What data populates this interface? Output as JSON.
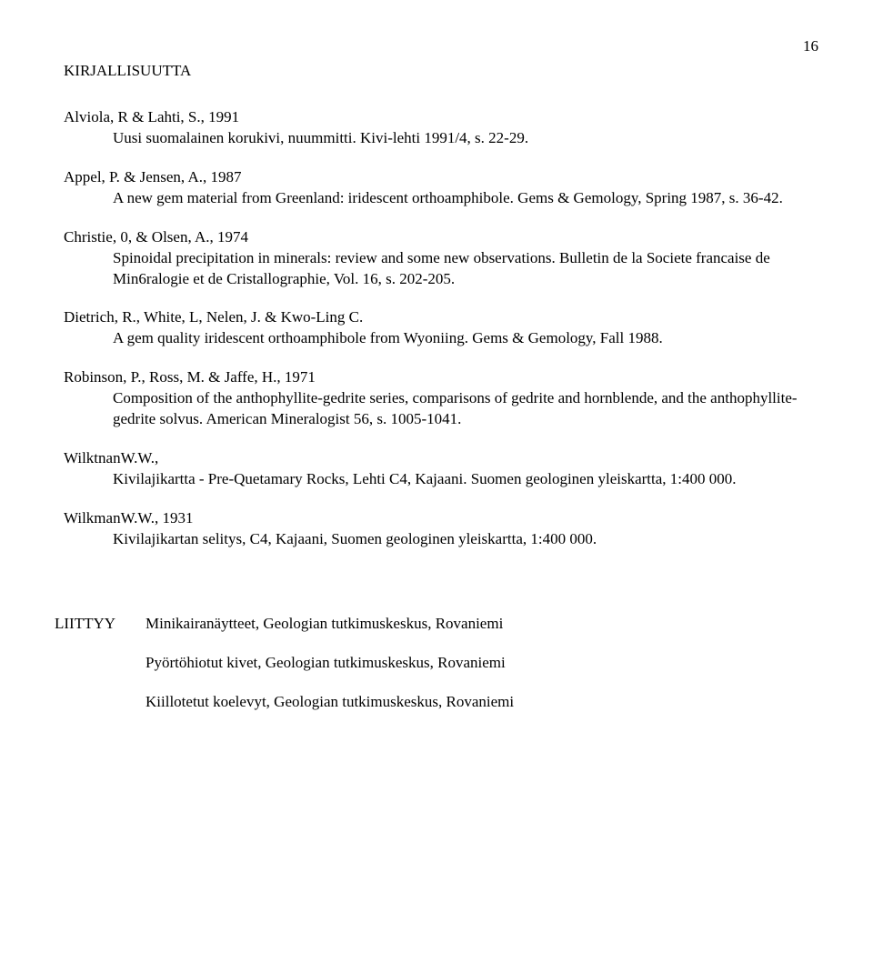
{
  "page_number": "16",
  "section_heading": "KIRJALLISUUTTA",
  "references": [
    {
      "author": "Alviola, R & Lahti, S., 1991",
      "body": "Uusi suomalainen korukivi, nuummitti. Kivi-lehti 1991/4, s. 22-29."
    },
    {
      "author": "Appel, P. & Jensen, A., 1987",
      "body": "A new gem material from Greenland: iridescent orthoamphibole. Gems & Gemology, Spring 1987, s. 36-42."
    },
    {
      "author": "Christie, 0, & Olsen, A., 1974",
      "body": "Spinoidal precipitation in minerals: review and some new observations. Bulletin de la Societe francaise de Min6ralogie et de Cristallographie, Vol. 16, s. 202-205."
    },
    {
      "author": "Dietrich, R., White, L, Nelen, J. & Kwo-Ling C.",
      "body": "A gem quality iridescent orthoamphibole from Wyoniing. Gems & Gemology, Fall 1988."
    },
    {
      "author": "Robinson, P., Ross, M. & Jaffe, H., 1971",
      "body": "Composition of the anthophyllite-gedrite series, comparisons of gedrite and hornblende, and the anthophyllite-gedrite solvus. American Mineralogist 56, s. 1005-1041."
    },
    {
      "author": "WilktnanW.W.,",
      "body": "Kivilajikartta - Pre-Quetamary Rocks, Lehti C4, Kajaani. Suomen geologinen yleiskartta, 1:400 000."
    },
    {
      "author": "WilkmanW.W., 1931",
      "body": "Kivilajikartan selitys, C4, Kajaani, Suomen geologinen yleiskartta, 1:400 000."
    }
  ],
  "attachments": {
    "label": "LIITTYY",
    "items": [
      "Minikairanäytteet, Geologian tutkimuskeskus, Rovaniemi",
      "Pyörtöhiotut kivet, Geologian tutkimuskeskus, Rovaniemi",
      "Kiillotetut koelevyt, Geologian tutkimuskeskus, Rovaniemi"
    ]
  }
}
